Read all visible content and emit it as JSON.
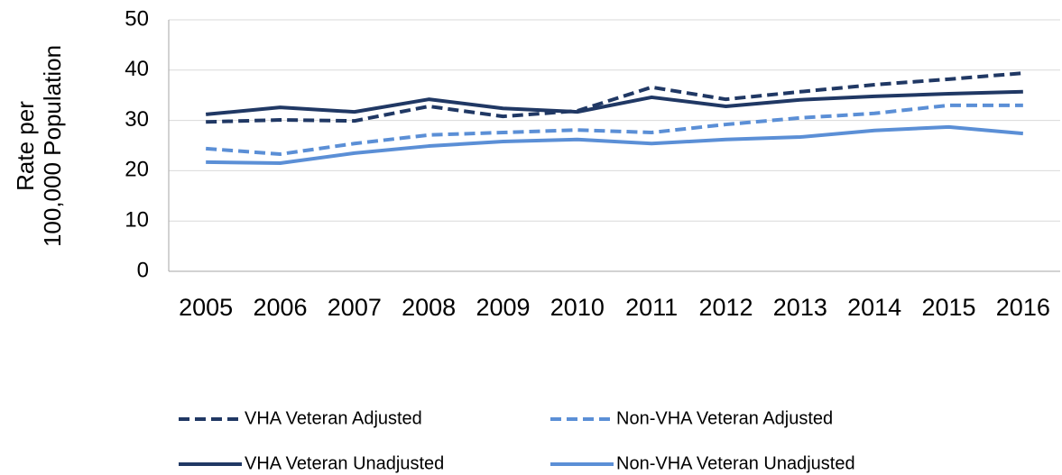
{
  "chart_data": {
    "type": "line",
    "y_label": [
      "Rate per",
      "100,000 Population"
    ],
    "categories": [
      "2005",
      "2006",
      "2007",
      "2008",
      "2009",
      "2010",
      "2011",
      "2012",
      "2013",
      "2014",
      "2015",
      "2016"
    ],
    "series": [
      {
        "name": "VHA Veteran Adjusted",
        "color": "#203864",
        "line_style": "dashed",
        "values": [
          29.7,
          30.1,
          29.9,
          32.8,
          30.8,
          31.9,
          36.6,
          34.2,
          35.7,
          37.1,
          38.2,
          39.4
        ]
      },
      {
        "name": "Non-VHA Veteran Adjusted",
        "color": "#5b8fd6",
        "line_style": "dashed",
        "values": [
          24.4,
          23.3,
          25.4,
          27.1,
          27.6,
          28.1,
          27.6,
          29.2,
          30.5,
          31.4,
          33.0,
          33.0
        ]
      },
      {
        "name": "VHA Veteran Unadjusted",
        "color": "#203864",
        "line_style": "solid",
        "values": [
          31.2,
          32.6,
          31.7,
          34.2,
          32.4,
          31.7,
          34.6,
          32.8,
          34.1,
          34.8,
          35.3,
          35.7
        ]
      },
      {
        "name": "Non-VHA Veteran Unadjusted",
        "color": "#5b8fd6",
        "line_style": "solid",
        "values": [
          21.7,
          21.5,
          23.5,
          24.9,
          25.8,
          26.2,
          25.4,
          26.2,
          26.7,
          28.0,
          28.7,
          27.4
        ]
      }
    ],
    "ylim": [
      0,
      50
    ],
    "yticks": [
      0,
      10,
      20,
      30,
      40,
      50
    ],
    "grid": true,
    "legend": "bottom"
  }
}
